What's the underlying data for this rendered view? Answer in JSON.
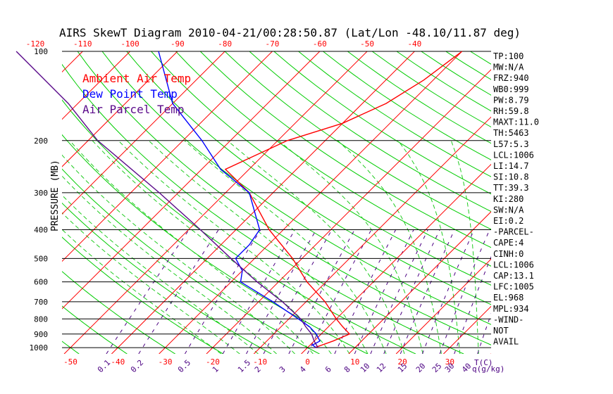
{
  "chart_data": {
    "type": "line",
    "title": "AIRS SkewT Diagram 2010-04-21/00:28:50.87 (Lat/Lon -48.10/11.87 deg)",
    "ylabel": "PRESSURE (MB)",
    "y_scale": "log",
    "ylim": [
      100,
      1050
    ],
    "y_ticks": [
      100,
      200,
      300,
      400,
      500,
      600,
      700,
      800,
      900,
      1000
    ],
    "y_tick_labels": [
      "100",
      "200",
      "300",
      "400",
      "500",
      "600",
      "700",
      "800",
      "900",
      "1000"
    ],
    "x_bottom_ticks": [
      -50,
      -40,
      -30,
      -20,
      -10,
      0,
      10,
      20,
      30
    ],
    "x_bottom_tick_labels": [
      "-50",
      "-40",
      "-30",
      "-20",
      "-10",
      "0",
      "10",
      "20",
      "30"
    ],
    "x_bottom_unit": "T(C)",
    "x_top_ticks": [
      -120,
      -110,
      -100,
      -90,
      -80,
      -70,
      -60,
      -50,
      -40
    ],
    "x_top_tick_labels": [
      "-120",
      "-110",
      "-100",
      "-90",
      "-80",
      "-70",
      "-60",
      "-50",
      "-40"
    ],
    "mixing_ratio_labels": [
      "0.1",
      "0.2",
      "0.5",
      "1",
      "1.5",
      "2",
      "3",
      "4",
      "6",
      "8",
      "10",
      "12",
      "15",
      "20",
      "25",
      "30",
      "40"
    ],
    "mixing_ratio_unit": "q(g/kg)",
    "grid": true,
    "legend": [
      "Ambient Air Temp",
      "Dew Point Temp",
      "Air Parcel Temp"
    ],
    "legend_placement": "top-left",
    "series": [
      {
        "name": "Ambient Air Temp",
        "color": "#ff0000",
        "pressure": [
          1000,
          950,
          900,
          850,
          800,
          700,
          600,
          500,
          400,
          300,
          250,
          200,
          175,
          150,
          125,
          100
        ],
        "temperature": [
          1.5,
          4,
          6,
          3,
          0,
          -6,
          -14,
          -22,
          -33,
          -45,
          -55,
          -48,
          -40,
          -35,
          -32,
          -30
        ]
      },
      {
        "name": "Dew Point Temp",
        "color": "#0000ff",
        "pressure": [
          1000,
          980,
          950,
          900,
          850,
          800,
          700,
          600,
          550,
          500,
          450,
          400,
          300,
          250,
          200,
          150,
          100
        ],
        "temperature": [
          1.8,
          0.5,
          1.2,
          -1,
          -4,
          -8,
          -17,
          -28,
          -30,
          -34,
          -34,
          -35,
          -45,
          -56,
          -66,
          -80,
          -94
        ]
      },
      {
        "name": "Air Parcel Temp",
        "color": "#5a0a8a",
        "pressure": [
          1000,
          950,
          900,
          850,
          800,
          700,
          600,
          500,
          400,
          300,
          200,
          150,
          100
        ],
        "temperature": [
          2.2,
          0,
          -2,
          -4.8,
          -7.5,
          -15,
          -24.5,
          -35,
          -47.5,
          -64,
          -88,
          -102,
          -124
        ]
      }
    ],
    "annotations": [
      "TP:100",
      "MW:N/A",
      "FRZ:940",
      "WB0:999",
      "PW:8.79",
      "RH:59.8",
      "MAXT:11.0",
      "TH:5463",
      "L57:5.3",
      "LCL:1006",
      "LI:14.7",
      "SI:10.8",
      "TT:39.3",
      "KI:280",
      "SW:N/A",
      "EI:0.2",
      "-PARCEL-",
      "CAPE:4",
      "CINH:0",
      "LCL:1006",
      "CAP:13.1",
      "LFC:1005",
      "EL:968",
      "MPL:934",
      "-WIND-",
      "NOT",
      "AVAIL"
    ]
  },
  "style": {
    "isobar_color": "#000000",
    "isotherm_color": "#ff0000",
    "dry_adiabat_color": "#00cc00",
    "moist_adiabat_color": "#22cc22",
    "mixing_ratio_color": "#4b0082",
    "axis_label_color": "#000000",
    "tick_label_color": "#ff0000"
  }
}
